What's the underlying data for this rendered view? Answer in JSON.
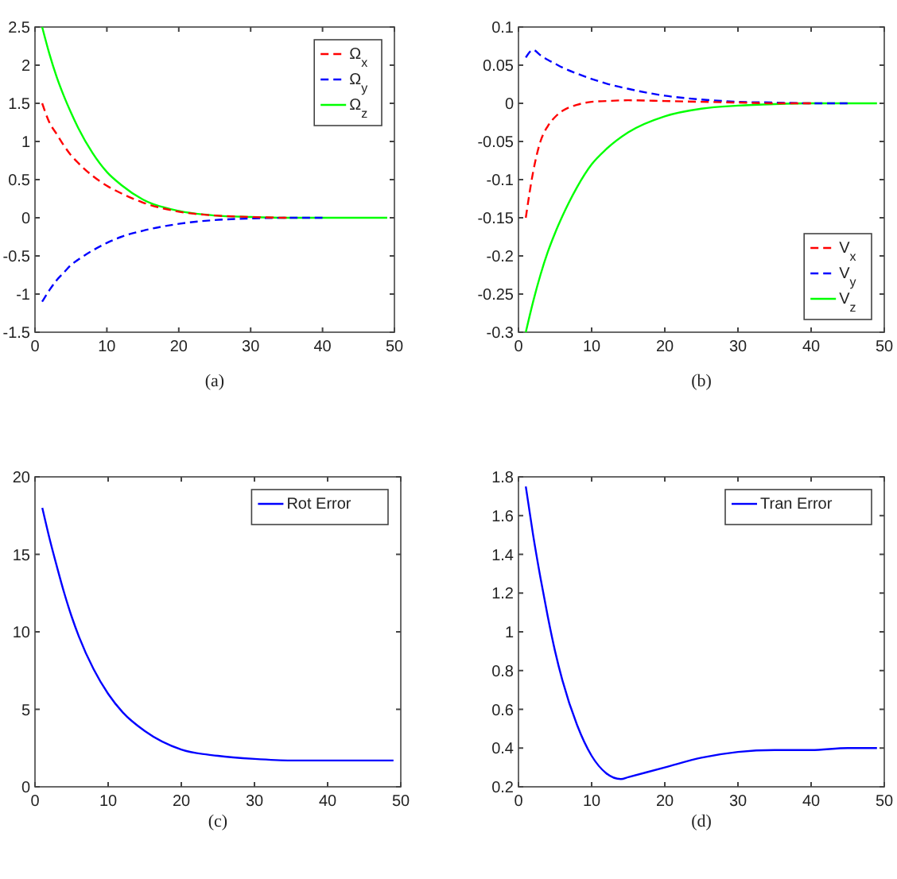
{
  "chart_data": [
    {
      "type": "line",
      "x": [
        1,
        2,
        3,
        4,
        5,
        6,
        8,
        10,
        12,
        15,
        20,
        25,
        30,
        35,
        40,
        45,
        49
      ],
      "xlim": [
        0,
        50
      ],
      "xticks": [
        0,
        10,
        20,
        30,
        40,
        50
      ],
      "ylim": [
        -1.5,
        2.5
      ],
      "yticks": [
        -1.5,
        -1,
        -0.5,
        0,
        0.5,
        1,
        1.5,
        2,
        2.5
      ],
      "legend": "top right",
      "annotations": [
        "(a)"
      ],
      "series": [
        {
          "name": "Ω$_{x}$",
          "color": "#ff0000",
          "line_style": "dashed",
          "values": [
            1.5,
            1.25,
            1.1,
            0.95,
            0.82,
            0.72,
            0.55,
            0.42,
            0.32,
            0.2,
            0.08,
            0.03,
            0.01,
            0,
            null,
            null,
            null
          ]
        },
        {
          "name": "Ω$_{y}$",
          "color": "#0000ff",
          "line_style": "dashed",
          "values": [
            -1.1,
            -0.95,
            -0.82,
            -0.72,
            -0.62,
            -0.55,
            -0.43,
            -0.33,
            -0.25,
            -0.17,
            -0.08,
            -0.03,
            -0.01,
            0,
            0,
            null,
            null
          ]
        },
        {
          "name": "Ω$_{z}$",
          "color": "#00ff00",
          "line_style": "solid",
          "values": [
            2.5,
            2.15,
            1.85,
            1.6,
            1.38,
            1.18,
            0.85,
            0.6,
            0.43,
            0.24,
            0.09,
            0.03,
            0.01,
            0,
            0,
            0,
            0
          ]
        }
      ]
    },
    {
      "type": "line",
      "x": [
        1,
        2,
        3,
        4,
        5,
        6,
        8,
        10,
        12,
        15,
        20,
        25,
        30,
        35,
        40,
        45,
        49
      ],
      "xlim": [
        0,
        50
      ],
      "xticks": [
        0,
        10,
        20,
        30,
        40,
        50
      ],
      "ylim": [
        -0.3,
        0.1
      ],
      "yticks": [
        -0.3,
        -0.25,
        -0.2,
        -0.15,
        -0.1,
        -0.05,
        0,
        0.05,
        0.1
      ],
      "legend": "bottom right",
      "annotations": [
        "(b)"
      ],
      "series": [
        {
          "name": "V$_{x}$",
          "color": "#ff0000",
          "line_style": "dashed",
          "values": [
            -0.15,
            -0.09,
            -0.05,
            -0.03,
            -0.018,
            -0.01,
            -0.002,
            0.002,
            0.003,
            0.004,
            0.003,
            0.002,
            0.001,
            0,
            0,
            null,
            null
          ]
        },
        {
          "name": "V$_{y}$",
          "color": "#0000ff",
          "line_style": "dashed",
          "values": [
            0.06,
            0.07,
            0.063,
            0.057,
            0.052,
            0.047,
            0.039,
            0.032,
            0.026,
            0.019,
            0.01,
            0.005,
            0.002,
            0.001,
            0,
            0,
            null
          ]
        },
        {
          "name": "V$_{z}$",
          "color": "#00ff00",
          "line_style": "solid",
          "values": [
            -0.3,
            -0.26,
            -0.225,
            -0.195,
            -0.17,
            -0.148,
            -0.11,
            -0.08,
            -0.06,
            -0.038,
            -0.017,
            -0.007,
            -0.003,
            -0.001,
            0,
            0,
            0
          ]
        }
      ]
    },
    {
      "type": "line",
      "x": [
        1,
        2,
        3,
        4,
        5,
        6,
        8,
        10,
        12,
        15,
        20,
        25,
        30,
        35,
        40,
        45,
        49
      ],
      "xlim": [
        0,
        50
      ],
      "xticks": [
        0,
        10,
        20,
        30,
        40,
        50
      ],
      "ylim": [
        0,
        20
      ],
      "yticks": [
        0,
        5,
        10,
        15,
        20
      ],
      "legend": "top right",
      "annotations": [
        "(c)"
      ],
      "series": [
        {
          "name": "Rot Error",
          "color": "#0000ff",
          "line_style": "solid",
          "values": [
            18,
            16,
            14.2,
            12.5,
            11,
            9.7,
            7.6,
            6,
            4.8,
            3.6,
            2.4,
            2,
            1.8,
            1.7,
            1.7,
            1.7,
            1.7
          ]
        }
      ]
    },
    {
      "type": "line",
      "x": [
        1,
        2,
        3,
        4,
        5,
        6,
        8,
        10,
        12,
        14,
        15,
        20,
        25,
        30,
        35,
        40,
        45,
        49
      ],
      "xlim": [
        0,
        50
      ],
      "xticks": [
        0,
        10,
        20,
        30,
        40,
        50
      ],
      "ylim": [
        0.2,
        1.8
      ],
      "yticks": [
        0.2,
        0.4,
        0.6,
        0.8,
        1,
        1.2,
        1.4,
        1.6,
        1.8
      ],
      "legend": "top right",
      "annotations": [
        "(d)"
      ],
      "series": [
        {
          "name": "Tran Error",
          "color": "#0000ff",
          "line_style": "solid",
          "values": [
            1.75,
            1.5,
            1.28,
            1.08,
            0.9,
            0.75,
            0.52,
            0.36,
            0.27,
            0.24,
            0.25,
            0.3,
            0.35,
            0.38,
            0.39,
            0.39,
            0.4,
            0.4
          ]
        }
      ]
    }
  ]
}
